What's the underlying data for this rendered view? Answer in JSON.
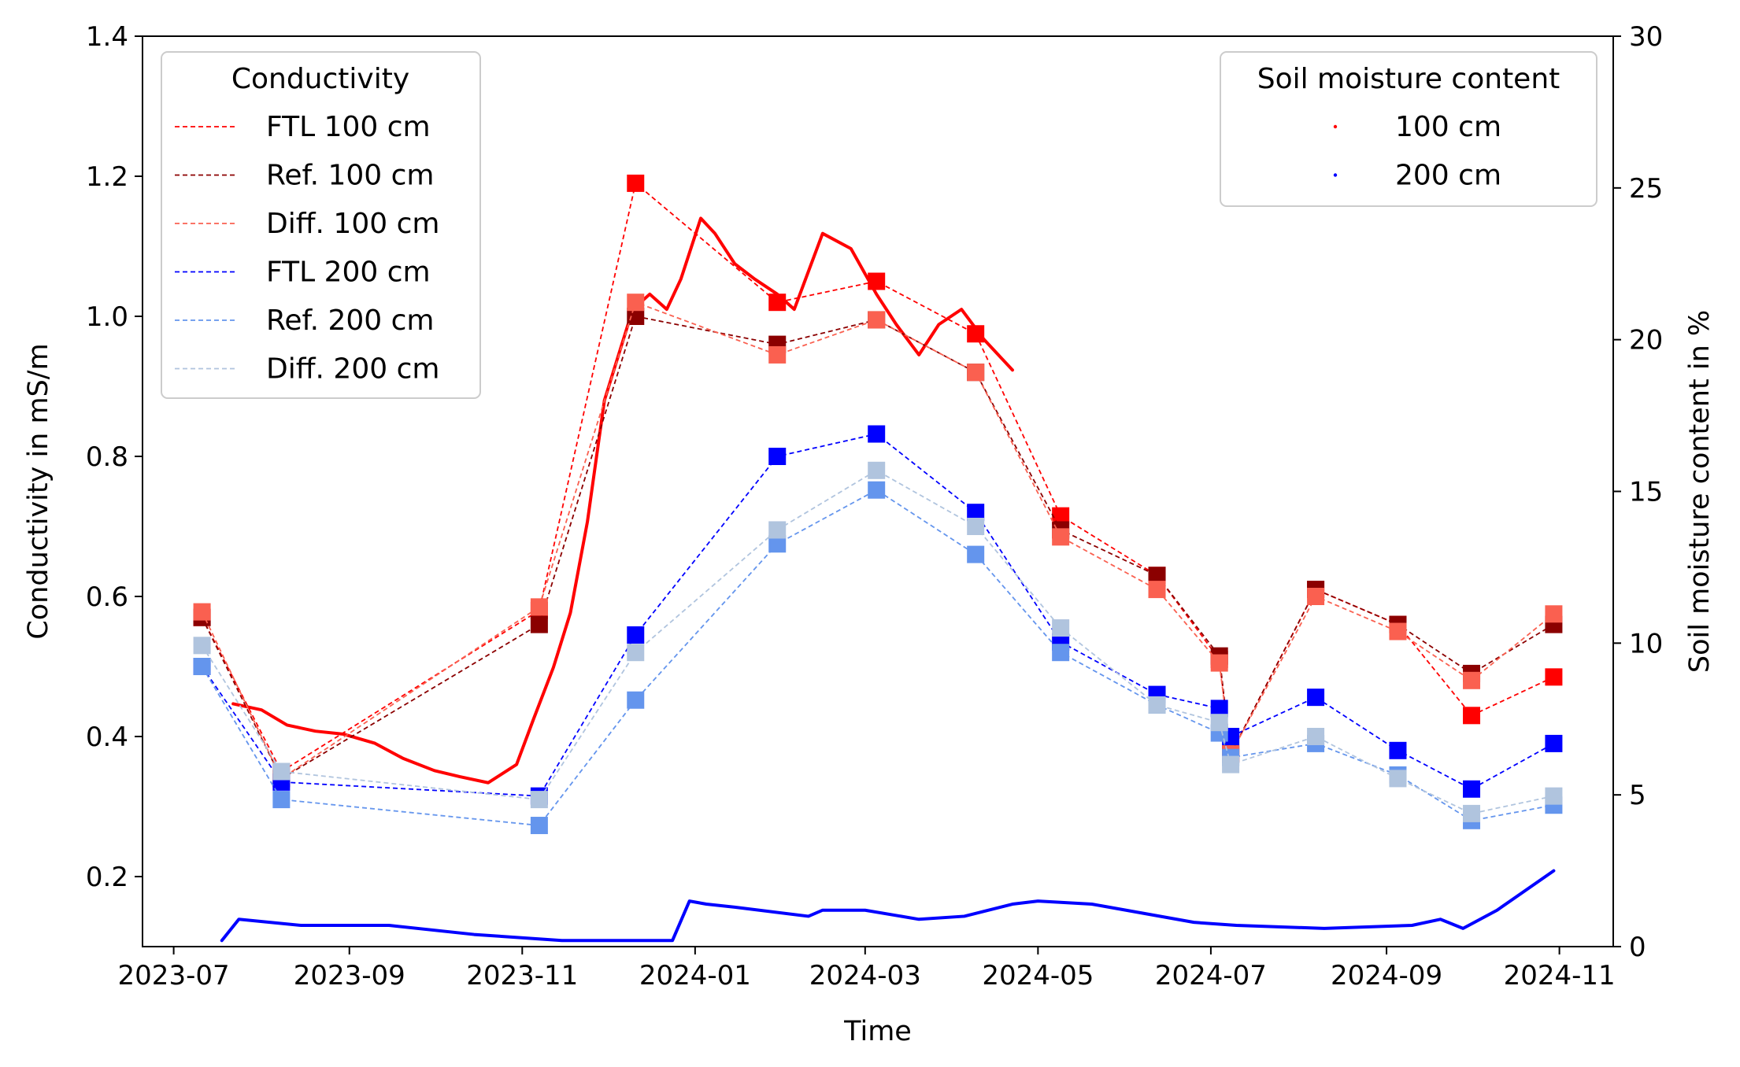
{
  "chart_data": {
    "type": "line",
    "xlabel": "Time",
    "ylabel_left": "Conductivity in mS/m",
    "ylabel_right": "Soil moisture content in %",
    "x_ticks": [
      "2023-07",
      "2023-09",
      "2023-11",
      "2024-01",
      "2024-03",
      "2024-05",
      "2024-07",
      "2024-09",
      "2024-11"
    ],
    "x_tick_dates": [
      "2023-07-01",
      "2023-09-01",
      "2023-11-01",
      "2024-01-01",
      "2024-03-01",
      "2024-05-01",
      "2024-07-01",
      "2024-09-01",
      "2024-11-01"
    ],
    "xlim": [
      "2023-06-20",
      "2024-11-20"
    ],
    "ylim_left": [
      0.1,
      1.4
    ],
    "ylim_right": [
      0,
      30
    ],
    "y_ticks_left": [
      "0.2",
      "0.4",
      "0.6",
      "0.8",
      "1.0",
      "1.2",
      "1.4"
    ],
    "y_ticks_right": [
      "0",
      "5",
      "10",
      "15",
      "20",
      "25",
      "30"
    ],
    "grid": false,
    "legend_conductivity": {
      "title": "Conductivity",
      "placement": "top-left",
      "entries": [
        "FTL 100 cm",
        "Ref. 100 cm",
        "Diff. 100 cm",
        "FTL 200 cm",
        "Ref. 200 cm",
        "Diff. 200 cm"
      ]
    },
    "legend_moisture": {
      "title": "Soil moisture content",
      "placement": "top-right",
      "entries": [
        "100 cm",
        "200 cm"
      ]
    },
    "dates": [
      "2023-07-11",
      "2023-08-08",
      "2023-11-07",
      "2023-12-11",
      "2024-01-30",
      "2024-03-05",
      "2024-04-09",
      "2024-05-09",
      "2024-06-12",
      "2024-07-04",
      "2024-07-08",
      "2024-08-07",
      "2024-09-05",
      "2024-10-01",
      "2024-10-30"
    ],
    "series": [
      {
        "name": "FTL 100 cm",
        "axis": "left",
        "color": "#ff0000",
        "values": [
          0.57,
          0.35,
          0.58,
          1.19,
          1.02,
          1.05,
          0.975,
          0.715,
          0.63,
          0.51,
          0.375,
          0.61,
          0.56,
          0.43,
          0.485
        ]
      },
      {
        "name": "Ref. 100 cm",
        "axis": "left",
        "color": "#8b0000",
        "values": [
          0.57,
          0.34,
          0.56,
          1.0,
          0.96,
          0.995,
          0.92,
          0.695,
          0.63,
          0.515,
          0.375,
          0.61,
          0.56,
          0.49,
          0.56
        ]
      },
      {
        "name": "Diff. 100 cm",
        "axis": "left",
        "color": "#fa6050",
        "values": [
          0.578,
          0.34,
          0.585,
          1.02,
          0.945,
          0.995,
          0.92,
          0.685,
          0.61,
          0.505,
          0.375,
          0.6,
          0.55,
          0.48,
          0.575
        ]
      },
      {
        "name": "FTL 200 cm",
        "axis": "left",
        "color": "#0000ff",
        "values": [
          0.5,
          0.335,
          0.315,
          0.545,
          0.8,
          0.832,
          0.72,
          0.535,
          0.46,
          0.44,
          0.4,
          0.456,
          0.38,
          0.325,
          0.39
        ]
      },
      {
        "name": "Ref. 200 cm",
        "axis": "left",
        "color": "#6495ed",
        "values": [
          0.5,
          0.31,
          0.273,
          0.452,
          0.675,
          0.752,
          0.66,
          0.52,
          0.445,
          0.405,
          0.37,
          0.39,
          0.345,
          0.28,
          0.302
        ]
      },
      {
        "name": "Diff. 200 cm",
        "axis": "left",
        "color": "#b0c4de",
        "values": [
          0.53,
          0.35,
          0.31,
          0.52,
          0.695,
          0.78,
          0.7,
          0.555,
          0.445,
          0.42,
          0.36,
          0.4,
          0.34,
          0.29,
          0.315
        ]
      }
    ],
    "moisture_series": [
      {
        "name": "100 cm",
        "axis": "right",
        "color": "#ff0000",
        "points": [
          [
            "2023-07-22",
            8.0
          ],
          [
            "2023-08-01",
            7.8
          ],
          [
            "2023-08-10",
            7.3
          ],
          [
            "2023-08-20",
            7.1
          ],
          [
            "2023-08-30",
            7.0
          ],
          [
            "2023-09-10",
            6.7
          ],
          [
            "2023-09-20",
            6.2
          ],
          [
            "2023-10-01",
            5.8
          ],
          [
            "2023-10-10",
            5.6
          ],
          [
            "2023-10-20",
            5.4
          ],
          [
            "2023-10-30",
            6.0
          ],
          [
            "2023-11-05",
            7.5
          ],
          [
            "2023-11-12",
            9.2
          ],
          [
            "2023-11-18",
            11.0
          ],
          [
            "2023-11-24",
            14.0
          ],
          [
            "2023-11-30",
            18.0
          ],
          [
            "2023-12-05",
            19.5
          ],
          [
            "2023-12-10",
            21.0
          ],
          [
            "2023-12-16",
            21.5
          ],
          [
            "2023-12-22",
            21.0
          ],
          [
            "2023-12-27",
            22.0
          ],
          [
            "2024-01-03",
            24.0
          ],
          [
            "2024-01-08",
            23.5
          ],
          [
            "2024-01-15",
            22.5
          ],
          [
            "2024-01-22",
            22.0
          ],
          [
            "2024-01-30",
            21.5
          ],
          [
            "2024-02-05",
            21.0
          ],
          [
            "2024-02-15",
            23.5
          ],
          [
            "2024-02-25",
            23.0
          ],
          [
            "2024-03-05",
            21.5
          ],
          [
            "2024-03-12",
            20.5
          ],
          [
            "2024-03-20",
            19.5
          ],
          [
            "2024-03-27",
            20.5
          ],
          [
            "2024-04-04",
            21.0
          ],
          [
            "2024-04-12",
            20.0
          ],
          [
            "2024-04-22",
            19.0
          ]
        ]
      },
      {
        "name": "200 cm",
        "axis": "right",
        "color": "#0000ff",
        "points": [
          [
            "2023-07-18",
            0.2
          ],
          [
            "2023-07-24",
            0.9
          ],
          [
            "2023-08-15",
            0.7
          ],
          [
            "2023-09-15",
            0.7
          ],
          [
            "2023-10-15",
            0.4
          ],
          [
            "2023-11-15",
            0.2
          ],
          [
            "2023-12-15",
            0.2
          ],
          [
            "2023-12-24",
            0.2
          ],
          [
            "2023-12-30",
            1.5
          ],
          [
            "2024-01-05",
            1.4
          ],
          [
            "2024-01-15",
            1.3
          ],
          [
            "2024-02-10",
            1.0
          ],
          [
            "2024-02-15",
            1.2
          ],
          [
            "2024-03-01",
            1.2
          ],
          [
            "2024-03-20",
            0.9
          ],
          [
            "2024-04-05",
            1.0
          ],
          [
            "2024-04-22",
            1.4
          ],
          [
            "2024-05-01",
            1.5
          ],
          [
            "2024-05-20",
            1.4
          ],
          [
            "2024-06-25",
            0.8
          ],
          [
            "2024-07-10",
            0.7
          ],
          [
            "2024-08-10",
            0.6
          ],
          [
            "2024-09-10",
            0.7
          ],
          [
            "2024-09-20",
            0.9
          ],
          [
            "2024-09-28",
            0.6
          ],
          [
            "2024-10-10",
            1.2
          ],
          [
            "2024-10-30",
            2.5
          ]
        ]
      }
    ]
  }
}
